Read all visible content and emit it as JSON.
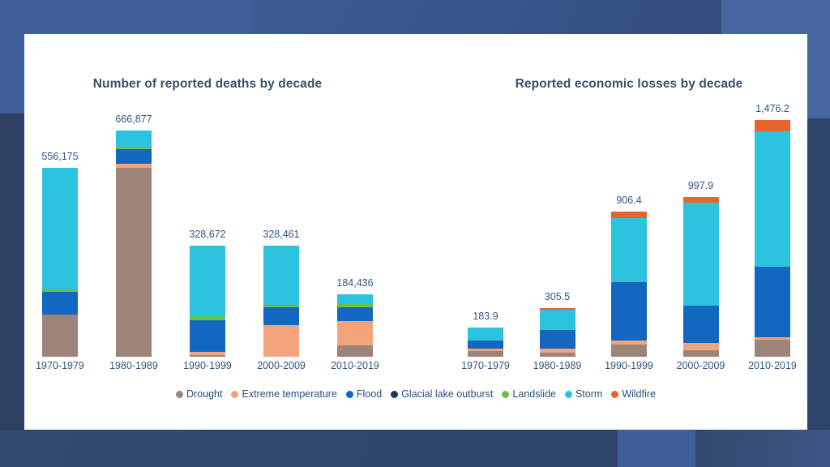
{
  "slide": {
    "titles": {
      "left_chart": "Number of reported deaths by decade",
      "right_chart": "Reported economic losses by decade"
    }
  },
  "theme": {
    "card_background": "#ffffff",
    "title_text": "#3a506c",
    "label_text": "#2f5486",
    "background_blue": "#37568c"
  },
  "legend": {
    "position": "bottom",
    "items": [
      {
        "label": "Drought",
        "color": "#9c8478"
      },
      {
        "label": "Extreme temperature",
        "color": "#f2a47c"
      },
      {
        "label": "Flood",
        "color": "#1267c0"
      },
      {
        "label": "Glacial lake outburst",
        "color": "#17375e"
      },
      {
        "label": "Landslide",
        "color": "#6bbe4a"
      },
      {
        "label": "Storm",
        "color": "#2cc3df"
      },
      {
        "label": "Wildfire",
        "color": "#e8642c"
      }
    ]
  },
  "chart_data": [
    {
      "type": "bar",
      "stacked": true,
      "title": "Number of reported deaths by decade",
      "categories": [
        "1970-1979",
        "1980-1989",
        "1990-1999",
        "2000-2009",
        "2010-2019"
      ],
      "totals": [
        556175,
        666877,
        328672,
        328461,
        184436
      ],
      "total_labels": [
        "556,175",
        "666,877",
        "328,672",
        "328,461",
        "184,436"
      ],
      "series": [
        {
          "name": "Drought",
          "color": "#9c8478",
          "values": [
            125000,
            558000,
            6000,
            0,
            33400
          ]
        },
        {
          "name": "Extreme temperature",
          "color": "#f2a47c",
          "values": [
            0,
            10000,
            9500,
            94000,
            70700
          ]
        },
        {
          "name": "Flood",
          "color": "#1267c0",
          "values": [
            66000,
            44000,
            91000,
            51000,
            41500
          ]
        },
        {
          "name": "Glacial lake outburst",
          "color": "#17375e",
          "values": [
            0,
            0,
            0,
            0,
            0
          ]
        },
        {
          "name": "Landslide",
          "color": "#6bbe4a",
          "values": [
            8000,
            8000,
            12000,
            8000,
            10500
          ]
        },
        {
          "name": "Storm",
          "color": "#2cc3df",
          "values": [
            357175,
            46877,
            210172,
            175461,
            28336
          ]
        },
        {
          "name": "Wildfire",
          "color": "#e8642c",
          "values": [
            0,
            0,
            0,
            0,
            0
          ]
        }
      ],
      "xlabel": "",
      "ylabel": "",
      "ylim": [
        0,
        666877
      ],
      "grid": false,
      "value_labels": "totals only, shown above each bar; segment values estimated from bar proportions"
    },
    {
      "type": "bar",
      "stacked": true,
      "title": "Reported economic losses by decade",
      "categories": [
        "1970-1979",
        "1980-1989",
        "1990-1999",
        "2000-2009",
        "2010-2019"
      ],
      "totals": [
        183.9,
        305.5,
        906.4,
        997.9,
        1476.2
      ],
      "total_labels": [
        "183.9",
        "305.5",
        "906.4",
        "997.9",
        "1,476.2"
      ],
      "series": [
        {
          "name": "Drought",
          "color": "#9c8478",
          "values": [
            36,
            28,
            75,
            41,
            106
          ]
        },
        {
          "name": "Extreme temperature",
          "color": "#f2a47c",
          "values": [
            17,
            21,
            25,
            45,
            17
          ]
        },
        {
          "name": "Flood",
          "color": "#1267c0",
          "values": [
            50,
            116,
            365,
            233,
            437
          ]
        },
        {
          "name": "Glacial lake outburst",
          "color": "#17375e",
          "values": [
            0,
            0,
            0,
            0,
            0
          ]
        },
        {
          "name": "Landslide",
          "color": "#6bbe4a",
          "values": [
            0,
            5,
            5,
            0,
            3
          ]
        },
        {
          "name": "Storm",
          "color": "#2cc3df",
          "values": [
            80.9,
            123,
            396.4,
            641.9,
            844.7
          ]
        },
        {
          "name": "Wildfire",
          "color": "#e8642c",
          "values": [
            0,
            12.5,
            40,
            37,
            68.5
          ]
        }
      ],
      "xlabel": "",
      "ylabel": "",
      "ylim": [
        0,
        1476.2
      ],
      "grid": false,
      "value_labels": "totals only, shown above each bar; segment values estimated from bar proportions"
    }
  ]
}
